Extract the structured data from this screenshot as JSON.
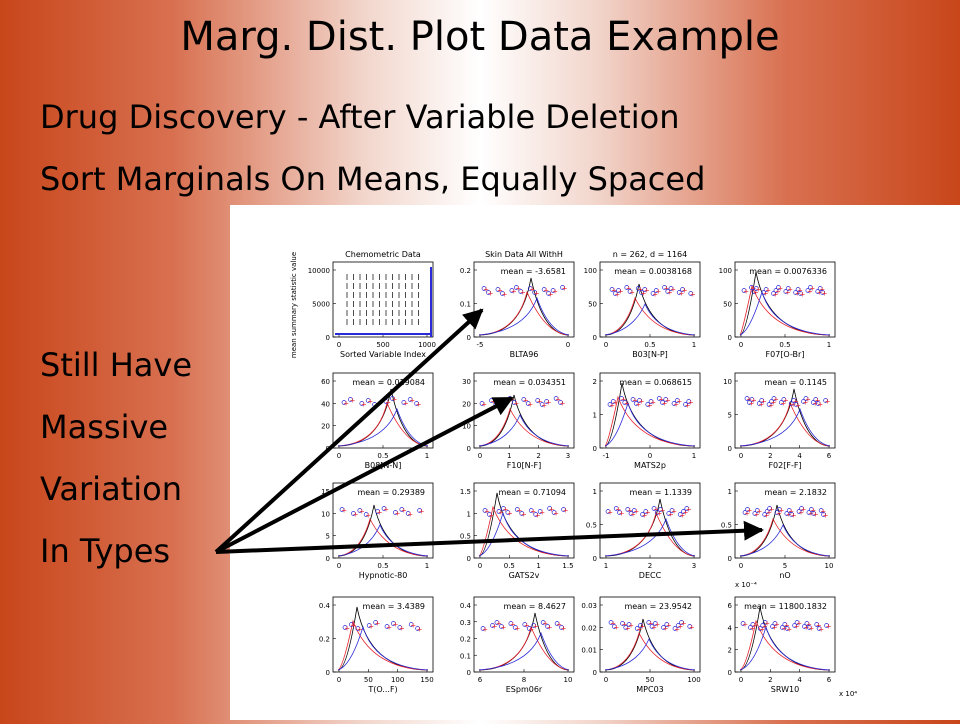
{
  "slide": {
    "title": "Marg. Dist. Plot Data Example",
    "subtitle_lines": [
      "Drug Discovery  - After Variable Deletion",
      "Sort Marginals On Means, Equally Spaced"
    ],
    "side_text": [
      "Still Have",
      "Massive",
      "Variation",
      "In Types"
    ]
  },
  "figure": {
    "ylabel_first": "mean summary statistic value",
    "colors": {
      "black": "#000000",
      "red": "#e8202a",
      "blue": "#2a2ad8"
    },
    "panels": [
      {
        "top": "Chemometric Data",
        "mean": "",
        "xlabel": "Sorted Variable Index",
        "yticks": [
          "10000",
          "5000",
          "0"
        ],
        "xticks": [
          "0",
          "500",
          "1000"
        ],
        "mult": ""
      },
      {
        "top": "Skin Data All WithH",
        "mean": "mean = -3.6581",
        "xlabel": "BLTA96",
        "yticks": [
          "0.2",
          "0.1",
          "0"
        ],
        "xticks": [
          "-5",
          "0"
        ],
        "mult": ""
      },
      {
        "top": "n = 262, d = 1164",
        "mean": "mean = 0.0038168",
        "xlabel": "B03[N-P]",
        "yticks": [
          "100",
          "50",
          "0"
        ],
        "xticks": [
          "0",
          "0.5",
          "1"
        ],
        "mult": ""
      },
      {
        "top": "",
        "mean": "mean = 0.0076336",
        "xlabel": "F07[O-Br]",
        "yticks": [
          "100",
          "50",
          "0"
        ],
        "xticks": [
          "0",
          "0.5",
          "1"
        ],
        "mult": ""
      },
      {
        "top": "",
        "mean": "mean = 0.019084",
        "xlabel": "B08[N-N]",
        "yticks": [
          "60",
          "40",
          "20",
          "0"
        ],
        "xticks": [
          "0",
          "0.5",
          "1"
        ],
        "mult": ""
      },
      {
        "top": "",
        "mean": "mean = 0.034351",
        "xlabel": "F10[N-F]",
        "yticks": [
          "30",
          "20",
          "10",
          "0"
        ],
        "xticks": [
          "0",
          "1",
          "2",
          "3"
        ],
        "mult": ""
      },
      {
        "top": "",
        "mean": "mean = 0.068615",
        "xlabel": "MATS2p",
        "yticks": [
          "2",
          "1",
          "0"
        ],
        "xticks": [
          "-1",
          "0",
          "1"
        ],
        "mult": ""
      },
      {
        "top": "",
        "mean": "mean = 0.1145",
        "xlabel": "F02[F-F]",
        "yticks": [
          "10",
          "5",
          "0"
        ],
        "xticks": [
          "0",
          "2",
          "4",
          "6"
        ],
        "mult": ""
      },
      {
        "top": "",
        "mean": "mean = 0.29389",
        "xlabel": "Hypnotic-80",
        "yticks": [
          "15",
          "10",
          "5",
          "0"
        ],
        "xticks": [
          "0",
          "0.5",
          "1"
        ],
        "mult": ""
      },
      {
        "top": "",
        "mean": "mean = 0.71094",
        "xlabel": "GATS2v",
        "yticks": [
          "1.5",
          "1",
          "0.5",
          "0"
        ],
        "xticks": [
          "0",
          "0.5",
          "1",
          "1.5"
        ],
        "mult": ""
      },
      {
        "top": "",
        "mean": "mean = 1.1339",
        "xlabel": "DECC",
        "yticks": [
          "1",
          "0.5",
          "0"
        ],
        "xticks": [
          "1",
          "2",
          "3"
        ],
        "mult": ""
      },
      {
        "top": "",
        "mean": "mean = 2.1832",
        "xlabel": "nO",
        "yticks": [
          "1",
          "0.5",
          "0"
        ],
        "xticks": [
          "0",
          "5",
          "10"
        ],
        "mult": ""
      },
      {
        "top": "",
        "mean": "mean = 3.4389",
        "xlabel": "T(O...F)",
        "yticks": [
          "0.4",
          "0.2",
          "0"
        ],
        "xticks": [
          "0",
          "50",
          "100",
          "150"
        ],
        "mult": ""
      },
      {
        "top": "",
        "mean": "mean = 8.4627",
        "xlabel": "ESpm06r",
        "yticks": [
          "0.4",
          "0.3",
          "0.2",
          "0.1",
          "0"
        ],
        "xticks": [
          "6",
          "8",
          "10"
        ],
        "mult": ""
      },
      {
        "top": "",
        "mean": "mean = 23.9542",
        "xlabel": "MPC03",
        "yticks": [
          "0.03",
          "0.02",
          "0.01",
          "0"
        ],
        "xticks": [
          "0",
          "50",
          "100"
        ],
        "mult": ""
      },
      {
        "top": "",
        "mean": "mean = 11800.1832",
        "xlabel": "SRW10",
        "yticks": [
          "6",
          "4",
          "2",
          "0"
        ],
        "xticks": [
          "0",
          "2",
          "4",
          "6"
        ],
        "mult": "x 10⁻⁴",
        "xmult": "x 10⁴"
      }
    ]
  }
}
